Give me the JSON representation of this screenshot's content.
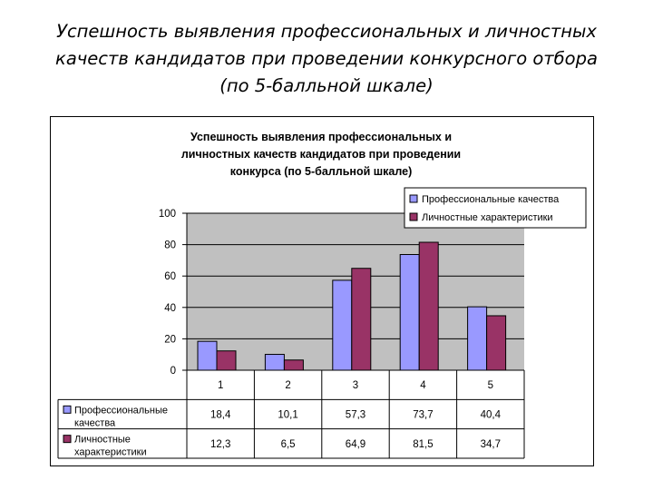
{
  "slide": {
    "title_lines": [
      "Успешность выявления профессиональных и личностных",
      "качеств кандидатов при проведении конкурсного отбора",
      "(по 5-балльной шкале)"
    ]
  },
  "chart_data": {
    "type": "bar",
    "title_lines": [
      "Успешность выявления профессиональных и",
      "личностных качеств кандидатов при проведении",
      "конкурса (по 5-балльной шкале)"
    ],
    "categories": [
      "1",
      "2",
      "3",
      "4",
      "5"
    ],
    "ylim": [
      0,
      100
    ],
    "yticks": [
      0,
      20,
      40,
      60,
      80,
      100
    ],
    "grid": true,
    "legend_position": "top-right",
    "series": [
      {
        "name": "Профессиональные качества",
        "table_label_lines": [
          "Профессиональные",
          "качества"
        ],
        "color": "#9999ff",
        "values": [
          18.4,
          10.1,
          57.3,
          73.7,
          40.4
        ],
        "labels": [
          "18,4",
          "10,1",
          "57,3",
          "73,7",
          "40,4"
        ]
      },
      {
        "name": "Личностные характеристики",
        "table_label_lines": [
          "Личностные",
          "характеристики"
        ],
        "color": "#993366",
        "values": [
          12.3,
          6.5,
          64.9,
          81.5,
          34.7
        ],
        "labels": [
          "12,3",
          "6,5",
          "64,9",
          "81,5",
          "34,7"
        ]
      }
    ],
    "colors": {
      "plot_background": "#c0c0c0",
      "gridline": "#000000"
    }
  }
}
